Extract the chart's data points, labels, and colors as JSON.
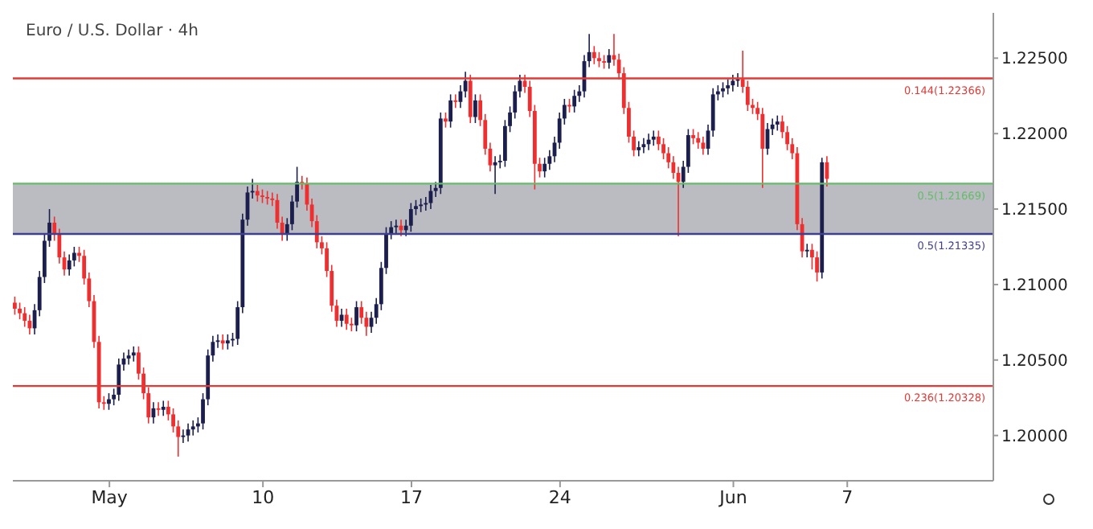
{
  "chart_data": {
    "type": "candlestick",
    "title": "Euro / U.S. Dollar · 4h",
    "categories": [
      null,
      null,
      null,
      null,
      null,
      null,
      null,
      null,
      null,
      null,
      null,
      null,
      null,
      null,
      null,
      null,
      null,
      null,
      null,
      "May",
      null,
      null,
      null,
      null,
      null,
      null,
      null,
      null,
      null,
      null,
      null,
      null,
      null,
      null,
      null,
      null,
      null,
      null,
      null,
      null,
      null,
      null,
      null,
      null,
      null,
      null,
      null,
      null,
      null,
      null,
      "10",
      null,
      null,
      null,
      null,
      null,
      null,
      null,
      null,
      null,
      null,
      null,
      null,
      null,
      null,
      null,
      null,
      null,
      null,
      null,
      null,
      null,
      null,
      null,
      null,
      null,
      null,
      null,
      null,
      null,
      "17",
      null,
      null,
      null,
      null,
      null,
      null,
      null,
      null,
      null,
      null,
      null,
      null,
      null,
      null,
      null,
      null,
      null,
      null,
      null,
      null,
      null,
      null,
      null,
      null,
      null,
      null,
      null,
      null,
      null,
      "24",
      null,
      null,
      null,
      null,
      null,
      null,
      null,
      null,
      null,
      null,
      null,
      null,
      null,
      null,
      null,
      null,
      null,
      null,
      null,
      null,
      null,
      null,
      null,
      null,
      null,
      null,
      null,
      null,
      null,
      null,
      null,
      null,
      null,
      null,
      "Jun",
      null,
      null,
      null,
      null,
      null,
      null,
      null,
      null,
      null,
      null,
      null,
      null,
      null,
      null,
      null,
      null,
      null,
      null,
      null,
      null,
      null,
      null,
      "7",
      null,
      null,
      null,
      null,
      null,
      null,
      null,
      null,
      null,
      null,
      null,
      null,
      null,
      null,
      null,
      null,
      null,
      null,
      null,
      null,
      null,
      null,
      null,
      null,
      null,
      null,
      null,
      null,
      null
    ],
    "ohlc": [
      [
        1.2088,
        1.2092,
        1.208,
        1.2084
      ],
      [
        1.2084,
        1.2088,
        1.2077,
        1.2081
      ],
      [
        1.2081,
        1.2085,
        1.2072,
        1.2076
      ],
      [
        1.2076,
        1.208,
        1.2067,
        1.2071
      ],
      [
        1.2071,
        1.2087,
        1.2067,
        1.2083
      ],
      [
        1.2083,
        1.2109,
        1.2079,
        1.2105
      ],
      [
        1.2105,
        1.2133,
        1.2101,
        1.2129
      ],
      [
        1.2129,
        1.215,
        1.2125,
        1.2141
      ],
      [
        1.2141,
        1.2145,
        1.2129,
        1.2133
      ],
      [
        1.2133,
        1.2137,
        1.2114,
        1.2118
      ],
      [
        1.2118,
        1.2122,
        1.2106,
        1.211
      ],
      [
        1.211,
        1.212,
        1.2106,
        1.2116
      ],
      [
        1.2116,
        1.2125,
        1.2112,
        1.2121
      ],
      [
        1.2121,
        1.2125,
        1.2115,
        1.2119
      ],
      [
        1.2119,
        1.2123,
        1.21,
        1.2104
      ],
      [
        1.2104,
        1.2108,
        1.2085,
        1.2089
      ],
      [
        1.2089,
        1.2093,
        1.2058,
        1.2062
      ],
      [
        1.2062,
        1.2066,
        1.2018,
        1.2022
      ],
      [
        1.2022,
        1.2026,
        1.2017,
        1.2021
      ],
      [
        1.2021,
        1.2028,
        1.2017,
        1.2024
      ],
      [
        1.2024,
        1.2031,
        1.202,
        1.2027
      ],
      [
        1.2027,
        1.2051,
        1.2023,
        1.2047
      ],
      [
        1.2047,
        1.2055,
        1.2043,
        1.2051
      ],
      [
        1.2051,
        1.2057,
        1.2047,
        1.2053
      ],
      [
        1.2053,
        1.2059,
        1.2049,
        1.2055
      ],
      [
        1.2055,
        1.2059,
        1.2037,
        1.2041
      ],
      [
        1.2041,
        1.2045,
        1.2024,
        1.2028
      ],
      [
        1.2028,
        1.2032,
        1.2008,
        1.2012
      ],
      [
        1.2012,
        1.2022,
        1.2008,
        1.2018
      ],
      [
        1.2018,
        1.2022,
        1.2013,
        1.2017
      ],
      [
        1.2017,
        1.2023,
        1.2013,
        1.2019
      ],
      [
        1.2019,
        1.2023,
        1.201,
        1.2014
      ],
      [
        1.2014,
        1.2018,
        1.2002,
        1.2006
      ],
      [
        1.2006,
        1.201,
        1.1986,
        1.1999
      ],
      [
        1.1999,
        1.2004,
        1.1995,
        1.2
      ],
      [
        1.2,
        1.2008,
        1.1996,
        1.2004
      ],
      [
        1.2004,
        1.201,
        1.2,
        1.2006
      ],
      [
        1.2006,
        1.2012,
        1.2002,
        1.2008
      ],
      [
        1.2008,
        1.2028,
        1.2004,
        1.2024
      ],
      [
        1.2024,
        1.2057,
        1.202,
        1.2053
      ],
      [
        1.2053,
        1.2066,
        1.2049,
        1.2062
      ],
      [
        1.2062,
        1.2067,
        1.2058,
        1.2063
      ],
      [
        1.2063,
        1.2067,
        1.2057,
        1.2061
      ],
      [
        1.2061,
        1.2067,
        1.2057,
        1.2063
      ],
      [
        1.2063,
        1.2068,
        1.2059,
        1.2064
      ],
      [
        1.2064,
        1.2089,
        1.206,
        1.2085
      ],
      [
        1.2085,
        1.2147,
        1.2081,
        1.2143
      ],
      [
        1.2143,
        1.2165,
        1.2139,
        1.2161
      ],
      [
        1.2161,
        1.217,
        1.2157,
        1.2162
      ],
      [
        1.2162,
        1.2166,
        1.2155,
        1.2159
      ],
      [
        1.2159,
        1.2163,
        1.2154,
        1.2158
      ],
      [
        1.2158,
        1.2162,
        1.2153,
        1.2157
      ],
      [
        1.2157,
        1.2161,
        1.2152,
        1.2156
      ],
      [
        1.2156,
        1.216,
        1.2137,
        1.2141
      ],
      [
        1.2141,
        1.2145,
        1.2129,
        1.2133
      ],
      [
        1.2133,
        1.2144,
        1.2129,
        1.214
      ],
      [
        1.214,
        1.2159,
        1.2136,
        1.2155
      ],
      [
        1.2155,
        1.2178,
        1.2151,
        1.2168
      ],
      [
        1.2168,
        1.2172,
        1.2163,
        1.2167
      ],
      [
        1.2167,
        1.2171,
        1.2149,
        1.2153
      ],
      [
        1.2153,
        1.2157,
        1.2138,
        1.2142
      ],
      [
        1.2142,
        1.2146,
        1.2124,
        1.2128
      ],
      [
        1.2128,
        1.2132,
        1.212,
        1.2124
      ],
      [
        1.2124,
        1.2128,
        1.2105,
        1.2109
      ],
      [
        1.2109,
        1.2113,
        1.2082,
        1.2086
      ],
      [
        1.2086,
        1.209,
        1.2072,
        1.2076
      ],
      [
        1.2076,
        1.2084,
        1.2072,
        1.208
      ],
      [
        1.208,
        1.2084,
        1.207,
        1.2074
      ],
      [
        1.2074,
        1.2078,
        1.2069,
        1.2073
      ],
      [
        1.2073,
        1.2089,
        1.2069,
        1.2085
      ],
      [
        1.2085,
        1.2089,
        1.2074,
        1.2078
      ],
      [
        1.2078,
        1.2082,
        1.2066,
        1.2072
      ],
      [
        1.2072,
        1.2082,
        1.2068,
        1.2078
      ],
      [
        1.2078,
        1.2091,
        1.2074,
        1.2087
      ],
      [
        1.2087,
        1.2115,
        1.2083,
        1.2111
      ],
      [
        1.2111,
        1.2138,
        1.2107,
        1.2134
      ],
      [
        1.2134,
        1.2142,
        1.213,
        1.2138
      ],
      [
        1.2138,
        1.2143,
        1.2134,
        1.2139
      ],
      [
        1.2139,
        1.2143,
        1.2132,
        1.2136
      ],
      [
        1.2136,
        1.2143,
        1.2132,
        1.2139
      ],
      [
        1.2139,
        1.2154,
        1.2135,
        1.215
      ],
      [
        1.215,
        1.2156,
        1.2146,
        1.2152
      ],
      [
        1.2152,
        1.2157,
        1.2148,
        1.2153
      ],
      [
        1.2153,
        1.2158,
        1.2149,
        1.2154
      ],
      [
        1.2154,
        1.2166,
        1.215,
        1.2162
      ],
      [
        1.2162,
        1.2168,
        1.2158,
        1.2164
      ],
      [
        1.2164,
        1.2214,
        1.216,
        1.221
      ],
      [
        1.221,
        1.2214,
        1.2204,
        1.2208
      ],
      [
        1.2208,
        1.2226,
        1.2204,
        1.2222
      ],
      [
        1.2222,
        1.2226,
        1.2217,
        1.2221
      ],
      [
        1.2221,
        1.2232,
        1.2217,
        1.2228
      ],
      [
        1.2228,
        1.2241,
        1.2224,
        1.2235
      ],
      [
        1.2235,
        1.2239,
        1.2207,
        1.2211
      ],
      [
        1.2211,
        1.2226,
        1.2207,
        1.2222
      ],
      [
        1.2222,
        1.2226,
        1.2205,
        1.2209
      ],
      [
        1.2209,
        1.2213,
        1.2186,
        1.219
      ],
      [
        1.219,
        1.2194,
        1.2175,
        1.2179
      ],
      [
        1.2179,
        1.2185,
        1.216,
        1.2181
      ],
      [
        1.2181,
        1.2186,
        1.2177,
        1.2182
      ],
      [
        1.2182,
        1.2209,
        1.2178,
        1.2205
      ],
      [
        1.2205,
        1.2218,
        1.2201,
        1.2214
      ],
      [
        1.2214,
        1.2232,
        1.221,
        1.2228
      ],
      [
        1.2228,
        1.2239,
        1.2224,
        1.2235
      ],
      [
        1.2235,
        1.2239,
        1.2227,
        1.2231
      ],
      [
        1.2231,
        1.2235,
        1.2211,
        1.2215
      ],
      [
        1.2215,
        1.2219,
        1.2163,
        1.218
      ],
      [
        1.218,
        1.2184,
        1.2171,
        1.2175
      ],
      [
        1.2175,
        1.2184,
        1.2171,
        1.218
      ],
      [
        1.218,
        1.2189,
        1.2176,
        1.2185
      ],
      [
        1.2185,
        1.2198,
        1.2181,
        1.2194
      ],
      [
        1.2194,
        1.2214,
        1.219,
        1.221
      ],
      [
        1.221,
        1.2223,
        1.2206,
        1.2219
      ],
      [
        1.2219,
        1.2223,
        1.2214,
        1.2218
      ],
      [
        1.2218,
        1.2229,
        1.2214,
        1.2225
      ],
      [
        1.2225,
        1.2232,
        1.2221,
        1.2228
      ],
      [
        1.2228,
        1.2252,
        1.2224,
        1.2248
      ],
      [
        1.2248,
        1.2266,
        1.2244,
        1.2254
      ],
      [
        1.2254,
        1.2258,
        1.2246,
        1.225
      ],
      [
        1.225,
        1.2254,
        1.2244,
        1.2248
      ],
      [
        1.2248,
        1.2252,
        1.2243,
        1.2247
      ],
      [
        1.2247,
        1.2256,
        1.2243,
        1.2252
      ],
      [
        1.2252,
        1.2266,
        1.2245,
        1.2249
      ],
      [
        1.2249,
        1.2253,
        1.2236,
        1.224
      ],
      [
        1.224,
        1.2244,
        1.2213,
        1.2217
      ],
      [
        1.2217,
        1.2221,
        1.2194,
        1.2198
      ],
      [
        1.2198,
        1.2202,
        1.2185,
        1.2189
      ],
      [
        1.2189,
        1.2195,
        1.2185,
        1.2191
      ],
      [
        1.2191,
        1.2197,
        1.2187,
        1.2193
      ],
      [
        1.2193,
        1.22,
        1.2189,
        1.2196
      ],
      [
        1.2196,
        1.2202,
        1.2192,
        1.2198
      ],
      [
        1.2198,
        1.2202,
        1.2189,
        1.2193
      ],
      [
        1.2193,
        1.2197,
        1.2183,
        1.2187
      ],
      [
        1.2187,
        1.2191,
        1.2177,
        1.2181
      ],
      [
        1.2181,
        1.2185,
        1.217,
        1.2174
      ],
      [
        1.2174,
        1.2178,
        1.2132,
        1.2168
      ],
      [
        1.2168,
        1.2182,
        1.2164,
        1.2178
      ],
      [
        1.2178,
        1.2203,
        1.2174,
        1.2199
      ],
      [
        1.2199,
        1.2203,
        1.2193,
        1.2197
      ],
      [
        1.2197,
        1.2201,
        1.219,
        1.2194
      ],
      [
        1.2194,
        1.2198,
        1.2186,
        1.219
      ],
      [
        1.219,
        1.2206,
        1.2186,
        1.2202
      ],
      [
        1.2202,
        1.223,
        1.2198,
        1.2226
      ],
      [
        1.2226,
        1.2232,
        1.2222,
        1.2228
      ],
      [
        1.2228,
        1.2234,
        1.2224,
        1.223
      ],
      [
        1.223,
        1.2236,
        1.2226,
        1.2232
      ],
      [
        1.2232,
        1.2239,
        1.2228,
        1.2235
      ],
      [
        1.2235,
        1.224,
        1.2231,
        1.2236
      ],
      [
        1.2236,
        1.2255,
        1.2227,
        1.2231
      ],
      [
        1.2231,
        1.2235,
        1.2215,
        1.2219
      ],
      [
        1.2219,
        1.2223,
        1.2213,
        1.2217
      ],
      [
        1.2217,
        1.2221,
        1.2209,
        1.2213
      ],
      [
        1.2213,
        1.2217,
        1.2164,
        1.219
      ],
      [
        1.219,
        1.2207,
        1.2186,
        1.2203
      ],
      [
        1.2203,
        1.221,
        1.2199,
        1.2206
      ],
      [
        1.2206,
        1.2212,
        1.2202,
        1.2208
      ],
      [
        1.2208,
        1.2212,
        1.2197,
        1.2201
      ],
      [
        1.2201,
        1.2205,
        1.2189,
        1.2193
      ],
      [
        1.2193,
        1.2197,
        1.2183,
        1.2187
      ],
      [
        1.2187,
        1.2191,
        1.2136,
        1.214
      ],
      [
        1.214,
        1.2144,
        1.2118,
        1.2122
      ],
      [
        1.2122,
        1.2127,
        1.2118,
        1.2123
      ],
      [
        1.2123,
        1.2127,
        1.211,
        1.2118
      ],
      [
        1.2118,
        1.2122,
        1.2102,
        1.2108
      ],
      [
        1.2108,
        1.2184,
        1.2104,
        1.2181
      ],
      [
        1.2181,
        1.2185,
        1.2165,
        1.217
      ],
      null,
      null,
      null,
      null,
      null,
      null,
      null,
      null,
      null,
      null,
      null,
      null,
      null,
      null,
      null,
      null,
      null,
      null,
      null,
      null,
      null,
      null,
      null,
      null,
      null,
      null,
      null,
      null,
      null,
      null,
      null,
      null,
      null
    ],
    "ylim": [
      1.197,
      1.228
    ],
    "yticks": [
      {
        "value": 1.2,
        "label": "1.20000"
      },
      {
        "value": 1.205,
        "label": "1.20500"
      },
      {
        "value": 1.21,
        "label": "1.21000"
      },
      {
        "value": 1.215,
        "label": "1.21500"
      },
      {
        "value": 1.22,
        "label": "1.22000"
      },
      {
        "value": 1.225,
        "label": "1.22500"
      }
    ],
    "ref_lines": [
      {
        "axis": "y",
        "value": 1.22366,
        "label": "0.144(1.22366)",
        "color": "#e53935"
      },
      {
        "axis": "y",
        "value": 1.21669,
        "label": "0.5(1.21669)",
        "color": "#66bb6a"
      },
      {
        "axis": "y",
        "value": 1.21335,
        "label": "0.5(1.21335)",
        "color": "#3f3f8f"
      },
      {
        "axis": "y",
        "value": 1.20328,
        "label": "0.236(1.20328)",
        "color": "#e53935"
      }
    ],
    "bands": [
      {
        "axis": "y",
        "from": 1.21335,
        "to": 1.21669,
        "color": "#9598a1"
      }
    ],
    "legend": false
  }
}
